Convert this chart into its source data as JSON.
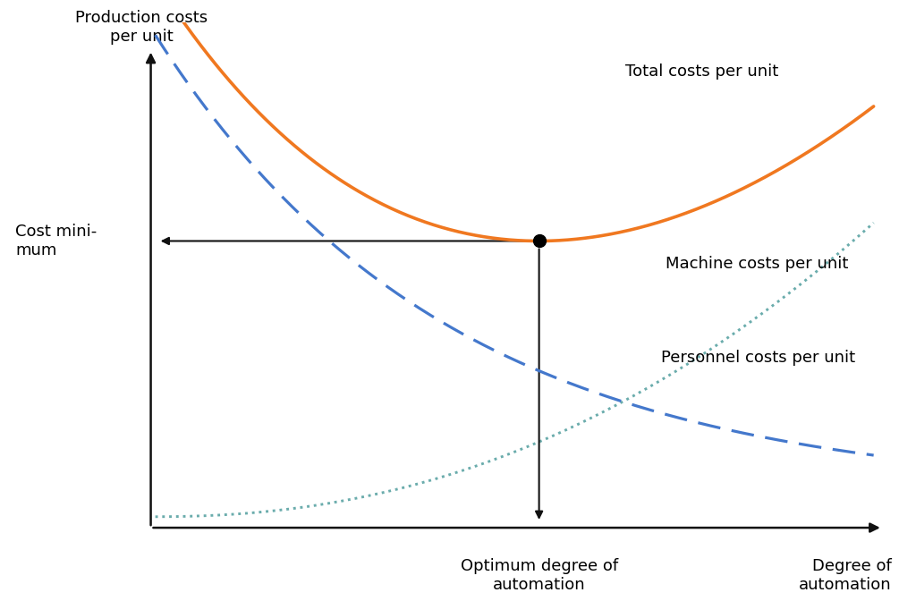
{
  "background_color": "#ffffff",
  "fig_width": 10.24,
  "fig_height": 6.72,
  "x_min": 0,
  "x_max": 10,
  "y_min": 0,
  "y_max": 10,
  "orange_color": "#F07820",
  "blue_dashed_color": "#4478cc",
  "teal_dotted_color": "#6aacac",
  "arrow_color": "#111111",
  "dot_color": "#000000",
  "label_total_costs": "Total costs per unit",
  "label_machine_costs": "Machine costs per unit",
  "label_personnel_costs": "Personnel costs per unit",
  "label_cost_minimum": "Cost mini-\nmum",
  "label_ylabel": "Production costs\nper unit",
  "label_xlabel": "Degree of\nautomation",
  "label_optimum": "Optimum degree of\nautomation",
  "text_fontsize": 13
}
